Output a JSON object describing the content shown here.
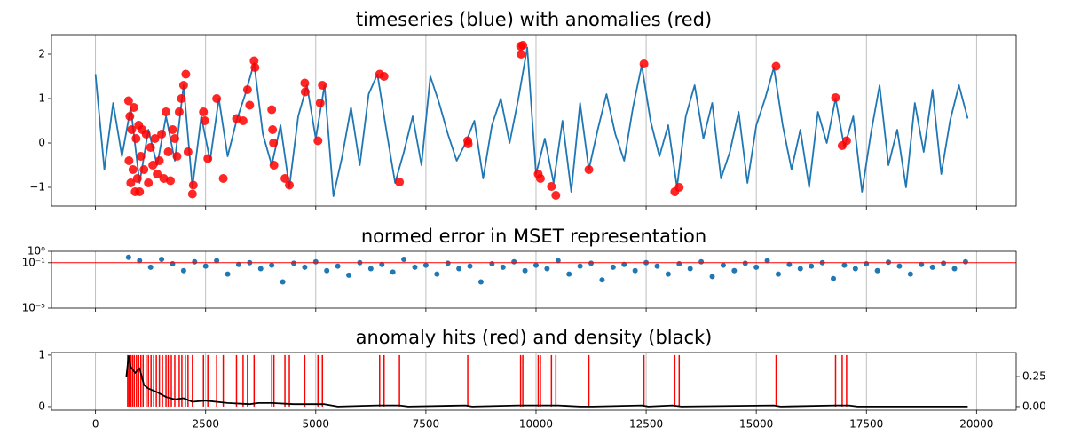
{
  "chart_data": [
    {
      "type": "line",
      "title": "timeseries (blue) with anomalies (red)",
      "xlim": [
        -1000,
        20900
      ],
      "ylim": [
        -1.42,
        2.44
      ],
      "grid": true,
      "yticks": [
        {
          "value": -1,
          "label": "−1"
        },
        0,
        1,
        2
      ],
      "series": [
        {
          "type": "line",
          "color": "#1f77b4",
          "x": [
            0,
            200,
            400,
            600,
            800,
            1000,
            1200,
            1400,
            1600,
            1800,
            2000,
            2200,
            2400,
            2600,
            2800,
            3000,
            3200,
            3400,
            3600,
            3800,
            4000,
            4200,
            4400,
            4600,
            4800,
            5000,
            5200,
            5400,
            5600,
            5800,
            6000,
            6200,
            6400,
            6600,
            6800,
            7000,
            7200,
            7400,
            7600,
            7800,
            8000,
            8200,
            8400,
            8600,
            8800,
            9000,
            9200,
            9400,
            9600,
            9800,
            10000,
            10200,
            10400,
            10600,
            10800,
            11000,
            11200,
            11400,
            11600,
            11800,
            12000,
            12200,
            12400,
            12600,
            12800,
            13000,
            13200,
            13400,
            13600,
            13800,
            14000,
            14200,
            14400,
            14600,
            14800,
            15000,
            15200,
            15400,
            15600,
            15800,
            16000,
            16200,
            16400,
            16600,
            16800,
            17000,
            17200,
            17400,
            17600,
            17800,
            18000,
            18200,
            18400,
            18600,
            18800,
            19000,
            19200,
            19400,
            19600,
            19800
          ],
          "values": [
            1.55,
            -0.6,
            0.9,
            -0.3,
            0.8,
            -0.9,
            0.3,
            -0.5,
            0.6,
            -0.4,
            1.3,
            -1.0,
            0.6,
            -0.4,
            1.0,
            -0.3,
            0.5,
            1.1,
            1.8,
            0.2,
            -0.5,
            0.4,
            -1.0,
            0.6,
            1.3,
            0.1,
            1.3,
            -1.2,
            -0.3,
            0.8,
            -0.5,
            1.1,
            1.55,
            0.3,
            -0.9,
            -0.2,
            0.6,
            -0.5,
            1.5,
            0.9,
            0.2,
            -0.4,
            0,
            0.5,
            -0.8,
            0.4,
            1.0,
            0,
            1.0,
            2.15,
            -0.7,
            0.1,
            -0.9,
            0.5,
            -1.1,
            0.9,
            -0.6,
            0.3,
            1.1,
            0.2,
            -0.4,
            0.8,
            1.75,
            0.5,
            -0.3,
            0.4,
            -1.0,
            0.6,
            1.3,
            0.1,
            0.9,
            -0.8,
            -0.2,
            0.7,
            -0.9,
            0.4,
            1.0,
            1.7,
            0.4,
            -0.6,
            0.3,
            -1.0,
            0.7,
            0,
            1.0,
            -0.1,
            0.6,
            -1.1,
            0.2,
            1.3,
            -0.5,
            0.3,
            -1.0,
            0.9,
            -0.2,
            1.2,
            -0.7,
            0.5,
            1.3,
            0.55
          ]
        },
        {
          "type": "scatter",
          "color": "#ff0000",
          "x": [
            750,
            760,
            780,
            800,
            820,
            850,
            870,
            900,
            920,
            950,
            980,
            1000,
            1030,
            1060,
            1100,
            1150,
            1200,
            1250,
            1300,
            1350,
            1400,
            1450,
            1500,
            1550,
            1600,
            1650,
            1700,
            1750,
            1800,
            1850,
            1900,
            1950,
            2000,
            2050,
            2100,
            2200,
            2220,
            2450,
            2480,
            2550,
            2750,
            2900,
            3200,
            3350,
            3450,
            3500,
            3600,
            3620,
            4000,
            4020,
            4040,
            4050,
            4300,
            4400,
            4750,
            4760,
            5050,
            5100,
            5150,
            6450,
            6550,
            6900,
            8450,
            8460,
            9650,
            9660,
            9700,
            10050,
            10100,
            10350,
            10450,
            11200,
            12450,
            13150,
            13250,
            15450,
            16800,
            16950,
            17050
          ],
          "values": [
            0.95,
            -0.4,
            0.6,
            -0.9,
            0.3,
            -0.6,
            0.8,
            -1.1,
            0.1,
            -0.8,
            0.4,
            -1.1,
            -0.3,
            0.3,
            -0.6,
            0.2,
            -0.9,
            -0.1,
            -0.5,
            0.1,
            -0.7,
            -0.4,
            0.2,
            -0.8,
            0.7,
            -0.2,
            -0.85,
            0.3,
            0.1,
            -0.3,
            0.7,
            1.0,
            1.3,
            1.55,
            -0.2,
            -1.15,
            -0.95,
            0.7,
            0.5,
            -0.35,
            1.0,
            -0.8,
            0.55,
            0.5,
            1.2,
            0.85,
            1.85,
            1.7,
            0.75,
            0.3,
            0,
            -0.5,
            -0.8,
            -0.95,
            1.35,
            1.15,
            0.05,
            0.9,
            1.3,
            1.55,
            1.5,
            -0.88,
            0.05,
            -0.02,
            2.18,
            2.0,
            2.2,
            -0.7,
            -0.8,
            -0.98,
            -1.18,
            -0.6,
            1.78,
            -1.1,
            -1.0,
            1.73,
            1.02,
            -0.06,
            0.05
          ]
        }
      ]
    },
    {
      "type": "scatter",
      "title": "normed error in MSET representation",
      "xlim": [
        -1000,
        20900
      ],
      "ylim": [
        1e-05,
        1
      ],
      "log_scale": true,
      "grid": true,
      "yticks": [
        {
          "value": 1,
          "label": "10⁰"
        },
        {
          "value": 0.1,
          "label": "10⁻¹"
        },
        {
          "value": 1e-05,
          "label": "10⁻⁵"
        }
      ],
      "hline": {
        "value": 0.1,
        "color": "#ff0000"
      },
      "series": [
        {
          "type": "scatter",
          "color": "#1f77b4",
          "x": [
            750,
            1000,
            1250,
            1500,
            1750,
            2000,
            2250,
            2500,
            2750,
            3000,
            3250,
            3500,
            3750,
            4000,
            4250,
            4500,
            4750,
            5000,
            5250,
            5500,
            5750,
            6000,
            6250,
            6500,
            6750,
            7000,
            7250,
            7500,
            7750,
            8000,
            8250,
            8500,
            8750,
            9000,
            9250,
            9500,
            9750,
            10000,
            10250,
            10500,
            10750,
            11000,
            11250,
            11500,
            11750,
            12000,
            12250,
            12500,
            12750,
            13000,
            13250,
            13500,
            13750,
            14000,
            14250,
            14500,
            14750,
            15000,
            15250,
            15500,
            15750,
            16000,
            16250,
            16500,
            16750,
            17000,
            17250,
            17500,
            17750,
            18000,
            18250,
            18500,
            18750,
            19000,
            19250,
            19500,
            19750
          ],
          "values": [
            0.3,
            0.15,
            0.04,
            0.2,
            0.08,
            0.02,
            0.12,
            0.05,
            0.15,
            0.01,
            0.07,
            0.1,
            0.03,
            0.06,
            0.002,
            0.09,
            0.04,
            0.12,
            0.02,
            0.05,
            0.008,
            0.1,
            0.03,
            0.07,
            0.015,
            0.2,
            0.04,
            0.06,
            0.01,
            0.09,
            0.03,
            0.05,
            0.002,
            0.08,
            0.04,
            0.12,
            0.02,
            0.06,
            0.03,
            0.15,
            0.01,
            0.05,
            0.09,
            0.003,
            0.04,
            0.07,
            0.02,
            0.1,
            0.05,
            0.01,
            0.08,
            0.03,
            0.12,
            0.006,
            0.06,
            0.02,
            0.09,
            0.04,
            0.15,
            0.01,
            0.07,
            0.03,
            0.05,
            0.1,
            0.004,
            0.06,
            0.03,
            0.08,
            0.02,
            0.11,
            0.05,
            0.01,
            0.07,
            0.04,
            0.09,
            0.03,
            0.12
          ]
        }
      ]
    },
    {
      "type": "line",
      "title": "anomaly hits (red) and density (black)",
      "xlim": [
        -1000,
        20900
      ],
      "ylim": [
        -0.07,
        1.05
      ],
      "y2lim": [
        -0.03,
        0.45
      ],
      "grid": true,
      "xticks": [
        0,
        2500,
        5000,
        7500,
        10000,
        12500,
        15000,
        17500,
        20000
      ],
      "yticks": [
        0,
        1
      ],
      "y2ticks": [
        {
          "value": 0,
          "label": "0.00"
        },
        0.25
      ],
      "series": [
        {
          "type": "vlines",
          "color": "#ff0000",
          "x": [
            730,
            760,
            800,
            840,
            880,
            930,
            980,
            1030,
            1080,
            1150,
            1200,
            1260,
            1320,
            1380,
            1450,
            1520,
            1600,
            1650,
            1720,
            1800,
            1900,
            1960,
            2040,
            2100,
            2200,
            2450,
            2550,
            2750,
            2900,
            3200,
            3350,
            3450,
            3600,
            4000,
            4050,
            4300,
            4400,
            4750,
            5050,
            5150,
            6450,
            6550,
            6900,
            8450,
            9650,
            9700,
            10050,
            10100,
            10350,
            10450,
            11200,
            12450,
            13150,
            13250,
            15450,
            16800,
            16950,
            17050
          ],
          "values": [
            1,
            1,
            1,
            1,
            1,
            1,
            1,
            1,
            1,
            1,
            1,
            1,
            1,
            1,
            1,
            1,
            1,
            1,
            1,
            1,
            1,
            1,
            1,
            1,
            1,
            1,
            1,
            1,
            1,
            1,
            1,
            1,
            1,
            1,
            1,
            1,
            1,
            1,
            1,
            1,
            1,
            1,
            1,
            1,
            1,
            1,
            1,
            1,
            1,
            1,
            1,
            1,
            1,
            1,
            1,
            1,
            1,
            1
          ]
        },
        {
          "type": "line",
          "color": "#000000",
          "axis": "y2",
          "x": [
            700,
            750,
            800,
            900,
            1000,
            1100,
            1200,
            1400,
            1600,
            1800,
            2000,
            2200,
            2500,
            3000,
            3500,
            3700,
            4000,
            4500,
            5000,
            5200,
            5500,
            6400,
            6600,
            6900,
            7100,
            8400,
            8550,
            9600,
            9800,
            10000,
            10500,
            11000,
            11300,
            12400,
            12550,
            13100,
            13300,
            15400,
            15550,
            16800,
            17100,
            17300,
            19800
          ],
          "values": [
            0.25,
            0.42,
            0.33,
            0.28,
            0.32,
            0.18,
            0.15,
            0.12,
            0.08,
            0.06,
            0.07,
            0.04,
            0.05,
            0.03,
            0.02,
            0.03,
            0.03,
            0.02,
            0.02,
            0.02,
            0,
            0.01,
            0.01,
            0.01,
            0,
            0.01,
            0,
            0.01,
            0.01,
            0.01,
            0.01,
            0,
            0,
            0.01,
            0,
            0.01,
            0,
            0.01,
            0,
            0.01,
            0.01,
            0,
            0
          ]
        }
      ]
    }
  ]
}
